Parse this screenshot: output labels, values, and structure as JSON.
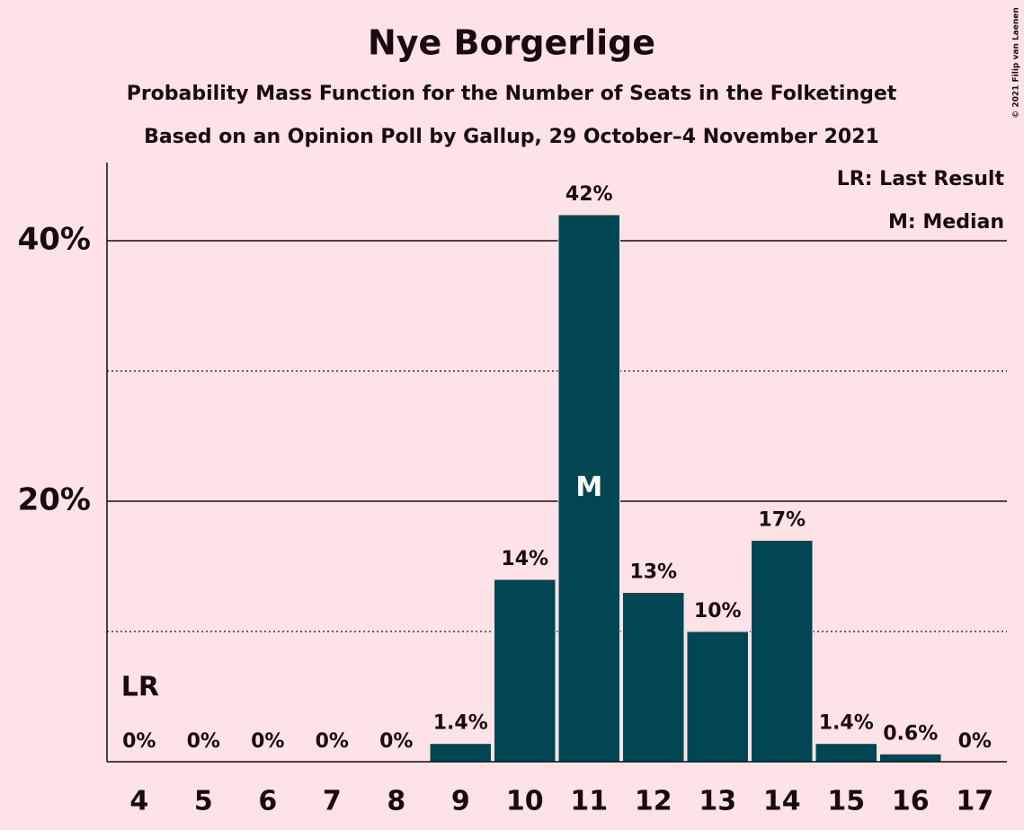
{
  "chart_data": {
    "type": "bar",
    "title": "Nye Borgerlige",
    "subtitle": "Probability Mass Function for the Number of Seats in the Folketinget",
    "subtitle2": "Based on an Opinion Poll by Gallup, 29 October–4 November 2021",
    "copyright": "© 2021 Filip van Laenen",
    "categories": [
      4,
      5,
      6,
      7,
      8,
      9,
      10,
      11,
      12,
      13,
      14,
      15,
      16,
      17
    ],
    "values": [
      0,
      0,
      0,
      0,
      0,
      1.4,
      14,
      42,
      13,
      10,
      17,
      1.4,
      0.6,
      0
    ],
    "value_labels": [
      "0%",
      "0%",
      "0%",
      "0%",
      "0%",
      "1.4%",
      "14%",
      "42%",
      "13%",
      "10%",
      "17%",
      "1.4%",
      "0.6%",
      "0%"
    ],
    "color": "#034653",
    "ylim": [
      0,
      46
    ],
    "yticks": [
      {
        "value": 20,
        "label": "20%"
      },
      {
        "value": 40,
        "label": "40%"
      }
    ],
    "minor_yticks": [
      10,
      30
    ],
    "grid": true,
    "annotations": [
      {
        "label": "LR",
        "category": 4
      },
      {
        "label": "M",
        "category": 11
      }
    ],
    "legend": [
      "LR: Last Result",
      "M: Median"
    ]
  }
}
